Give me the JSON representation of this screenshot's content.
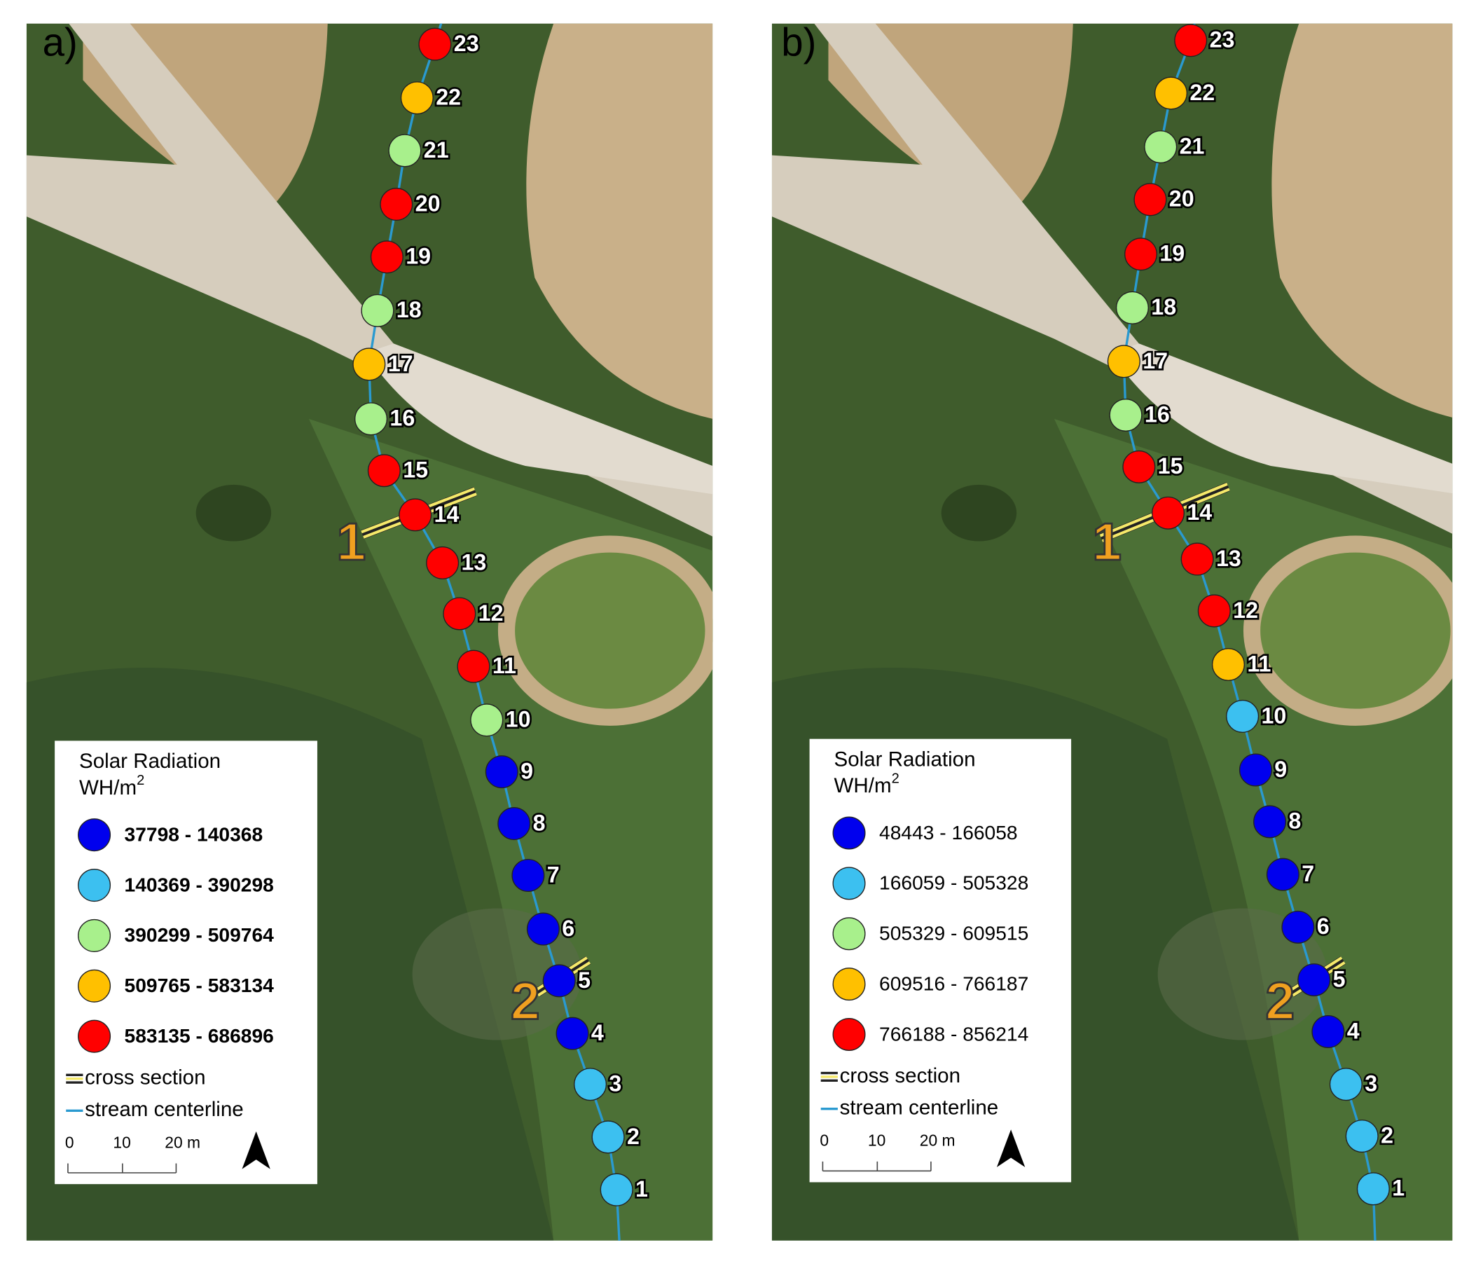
{
  "panels": [
    {
      "label": "a)",
      "legend": {
        "title": "Solar Radiation",
        "unit": "WH/m",
        "unit_superscript": "2",
        "bold_classes": true,
        "classes": [
          {
            "label": "37798 - 140368",
            "color": "#0000ee"
          },
          {
            "label": "140369 - 390298",
            "color": "#3cc0f0"
          },
          {
            "label": "390299 - 509764",
            "color": "#a8f08c"
          },
          {
            "label": "509765 - 583134",
            "color": "#ffc000"
          },
          {
            "label": "583135 - 686896",
            "color": "#ff0000"
          }
        ],
        "cross_section": "cross section",
        "centerline": "stream centerline",
        "scale_labels": [
          "0",
          "10",
          "20 m"
        ]
      },
      "cross_sections": [
        "1",
        "2"
      ],
      "points": [
        {
          "label": "1",
          "color": "#3cc0f0"
        },
        {
          "label": "2",
          "color": "#3cc0f0"
        },
        {
          "label": "3",
          "color": "#3cc0f0"
        },
        {
          "label": "4",
          "color": "#0000ee"
        },
        {
          "label": "5",
          "color": "#0000ee"
        },
        {
          "label": "6",
          "color": "#0000ee"
        },
        {
          "label": "7",
          "color": "#0000ee"
        },
        {
          "label": "8",
          "color": "#0000ee"
        },
        {
          "label": "9",
          "color": "#0000ee"
        },
        {
          "label": "10",
          "color": "#a8f08c"
        },
        {
          "label": "11",
          "color": "#ff0000"
        },
        {
          "label": "12",
          "color": "#ff0000"
        },
        {
          "label": "13",
          "color": "#ff0000"
        },
        {
          "label": "14",
          "color": "#ff0000"
        },
        {
          "label": "15",
          "color": "#ff0000"
        },
        {
          "label": "16",
          "color": "#a8f08c"
        },
        {
          "label": "17",
          "color": "#ffc000"
        },
        {
          "label": "18",
          "color": "#a8f08c"
        },
        {
          "label": "19",
          "color": "#ff0000"
        },
        {
          "label": "20",
          "color": "#ff0000"
        },
        {
          "label": "21",
          "color": "#a8f08c"
        },
        {
          "label": "22",
          "color": "#ffc000"
        },
        {
          "label": "23",
          "color": "#ff0000"
        }
      ]
    },
    {
      "label": "b)",
      "legend": {
        "title": "Solar Radiation",
        "unit": "WH/m",
        "unit_superscript": "2",
        "bold_classes": false,
        "classes": [
          {
            "label": "48443 - 166058",
            "color": "#0000ee"
          },
          {
            "label": "166059 - 505328",
            "color": "#3cc0f0"
          },
          {
            "label": "505329 - 609515",
            "color": "#a8f08c"
          },
          {
            "label": "609516 - 766187",
            "color": "#ffc000"
          },
          {
            "label": "766188 - 856214",
            "color": "#ff0000"
          }
        ],
        "cross_section": "cross section",
        "centerline": "stream centerline",
        "scale_labels": [
          "0",
          "10",
          "20 m"
        ]
      },
      "cross_sections": [
        "1",
        "2"
      ],
      "points": [
        {
          "label": "1",
          "color": "#3cc0f0"
        },
        {
          "label": "2",
          "color": "#3cc0f0"
        },
        {
          "label": "3",
          "color": "#3cc0f0"
        },
        {
          "label": "4",
          "color": "#0000ee"
        },
        {
          "label": "5",
          "color": "#0000ee"
        },
        {
          "label": "6",
          "color": "#0000ee"
        },
        {
          "label": "7",
          "color": "#0000ee"
        },
        {
          "label": "8",
          "color": "#0000ee"
        },
        {
          "label": "9",
          "color": "#0000ee"
        },
        {
          "label": "10",
          "color": "#3cc0f0"
        },
        {
          "label": "11",
          "color": "#ffc000"
        },
        {
          "label": "12",
          "color": "#ff0000"
        },
        {
          "label": "13",
          "color": "#ff0000"
        },
        {
          "label": "14",
          "color": "#ff0000"
        },
        {
          "label": "15",
          "color": "#ff0000"
        },
        {
          "label": "16",
          "color": "#a8f08c"
        },
        {
          "label": "17",
          "color": "#ffc000"
        },
        {
          "label": "18",
          "color": "#a8f08c"
        },
        {
          "label": "19",
          "color": "#ff0000"
        },
        {
          "label": "20",
          "color": "#ff0000"
        },
        {
          "label": "21",
          "color": "#a8f08c"
        },
        {
          "label": "22",
          "color": "#ffc000"
        },
        {
          "label": "23",
          "color": "#ff0000"
        }
      ]
    }
  ]
}
